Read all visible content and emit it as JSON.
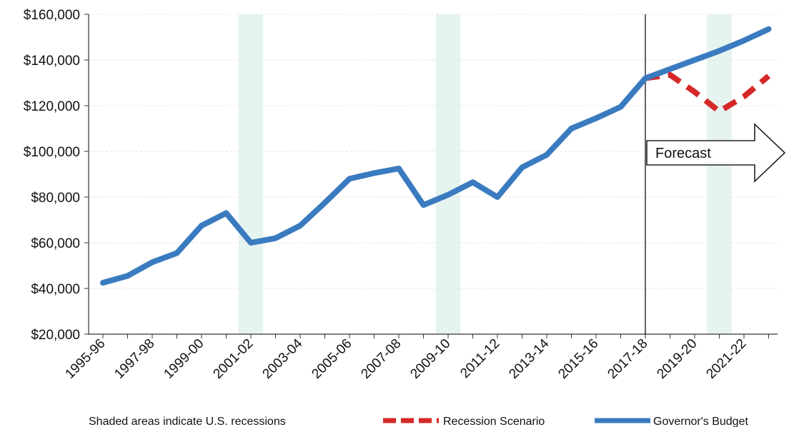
{
  "chart_data": {
    "type": "line",
    "title": "",
    "xlabel": "",
    "ylabel": "",
    "ylim": [
      20000,
      160000
    ],
    "yticks": [
      "$20,000",
      "$40,000",
      "$60,000",
      "$80,000",
      "$100,000",
      "$120,000",
      "$140,000",
      "$160,000"
    ],
    "categories": [
      "1995-96",
      "1996-97",
      "1997-98",
      "1998-99",
      "1999-00",
      "2000-01",
      "2001-02",
      "2002-03",
      "2003-04",
      "2004-05",
      "2005-06",
      "2006-07",
      "2007-08",
      "2008-09",
      "2009-10",
      "2010-11",
      "2011-12",
      "2012-13",
      "2013-14",
      "2014-15",
      "2015-16",
      "2016-17",
      "2017-18",
      "2018-19",
      "2019-20",
      "2020-21",
      "2021-22",
      "2022-23"
    ],
    "xtick_labels": [
      "1995-96",
      "1997-98",
      "1999-00",
      "2001-02",
      "2003-04",
      "2005-06",
      "2007-08",
      "2009-10",
      "2011-12",
      "2013-14",
      "2015-16",
      "2017-18",
      "2019-20",
      "2021-22"
    ],
    "series": [
      {
        "name": "Governor's Budget",
        "color": "#3a7bc0",
        "style": "solid",
        "x": [
          "1995-96",
          "1996-97",
          "1997-98",
          "1998-99",
          "1999-00",
          "2000-01",
          "2001-02",
          "2002-03",
          "2003-04",
          "2004-05",
          "2005-06",
          "2006-07",
          "2007-08",
          "2008-09",
          "2009-10",
          "2010-11",
          "2011-12",
          "2012-13",
          "2013-14",
          "2014-15",
          "2015-16",
          "2016-17",
          "2017-18",
          "2018-19",
          "2019-20",
          "2020-21",
          "2021-22",
          "2022-23"
        ],
        "values": [
          42500,
          45500,
          51500,
          55500,
          67500,
          73000,
          60000,
          62000,
          67500,
          77500,
          88000,
          90500,
          92500,
          76500,
          81000,
          86500,
          80000,
          93000,
          98500,
          110000,
          114500,
          119500,
          132000,
          136000,
          140000,
          144000,
          148500,
          153500
        ]
      },
      {
        "name": "Recession Scenario",
        "color": "#d62828",
        "style": "dashed",
        "x": [
          "2017-18",
          "2018-19",
          "2019-20",
          "2020-21",
          "2021-22",
          "2022-23"
        ],
        "values": [
          132000,
          133500,
          126000,
          117500,
          124000,
          133000
        ]
      }
    ],
    "recessions": [
      [
        "2000-01",
        "2001-02"
      ],
      [
        "2008-09",
        "2009-10"
      ],
      [
        "2019-20",
        "2020-21"
      ]
    ],
    "forecast_start": "2017-18",
    "forecast_label": "Forecast",
    "note": "Shaded areas indicate U.S. recessions",
    "grid": true,
    "legend_position": "bottom"
  }
}
